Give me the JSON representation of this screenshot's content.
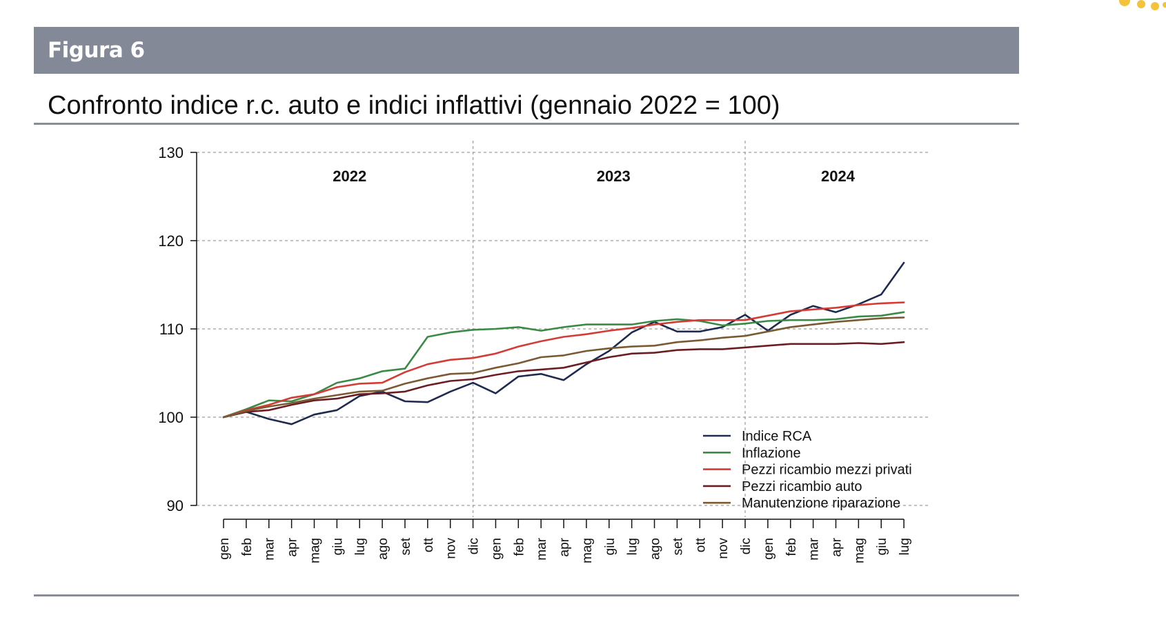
{
  "figure_label": "Figura 6",
  "title": "Confronto indice r.c. auto e indici inflattivi (gennaio 2022 = 100)",
  "colors": {
    "header_bg": "#838996",
    "rule": "#888c94",
    "accent_dots": "#f3c33d"
  },
  "chart_data": {
    "type": "line",
    "title": "Confronto indice r.c. auto e indici inflattivi (gennaio 2022 = 100)",
    "xlabel": "",
    "ylabel": "",
    "ylim": [
      90,
      130
    ],
    "yticks": [
      90,
      100,
      110,
      120,
      130
    ],
    "grid": true,
    "legend_position": "bottom-right",
    "year_labels": [
      "2022",
      "2023",
      "2024"
    ],
    "year_separators_after": [
      "dic",
      "dic"
    ],
    "x": [
      "gen",
      "feb",
      "mar",
      "apr",
      "mag",
      "giu",
      "lug",
      "ago",
      "set",
      "ott",
      "nov",
      "dic",
      "gen",
      "feb",
      "mar",
      "apr",
      "mag",
      "giu",
      "lug",
      "ago",
      "set",
      "ott",
      "nov",
      "dic",
      "gen",
      "feb",
      "mar",
      "apr",
      "mag",
      "giu",
      "lug"
    ],
    "series": [
      {
        "name": "Indice RCA",
        "color": "#1f2a4f",
        "values": [
          100,
          100.6,
          99.8,
          99.2,
          100.3,
          100.8,
          102.4,
          102.9,
          101.8,
          101.7,
          102.9,
          103.9,
          102.7,
          104.6,
          104.9,
          104.2,
          106.0,
          107.5,
          109.6,
          110.8,
          109.7,
          109.7,
          110.2,
          111.6,
          109.8,
          111.6,
          112.6,
          111.9,
          112.8,
          113.9,
          117.5
        ]
      },
      {
        "name": "Inflazione",
        "color": "#3a8a45",
        "values": [
          100,
          100.9,
          101.9,
          101.8,
          102.6,
          103.9,
          104.4,
          105.2,
          105.5,
          109.1,
          109.6,
          109.9,
          110.0,
          110.2,
          109.8,
          110.2,
          110.5,
          110.5,
          110.5,
          110.9,
          111.1,
          110.9,
          110.4,
          110.6,
          110.9,
          111.0,
          111.0,
          111.1,
          111.4,
          111.5,
          111.9
        ]
      },
      {
        "name": "Pezzi ricambio mezzi privati",
        "color": "#d63a35",
        "values": [
          100,
          100.8,
          101.4,
          102.2,
          102.6,
          103.4,
          103.8,
          103.9,
          105.1,
          106.0,
          106.5,
          106.7,
          107.2,
          108.0,
          108.6,
          109.1,
          109.4,
          109.8,
          110.1,
          110.5,
          110.8,
          111.0,
          111.0,
          111.0,
          111.5,
          112.0,
          112.2,
          112.4,
          112.7,
          112.9,
          113.0
        ]
      },
      {
        "name": "Pezzi ricambio auto",
        "color": "#6b1d24",
        "values": [
          100,
          100.6,
          100.8,
          101.4,
          101.9,
          102.1,
          102.6,
          102.7,
          102.9,
          103.6,
          104.1,
          104.3,
          104.8,
          105.2,
          105.4,
          105.6,
          106.2,
          106.8,
          107.2,
          107.3,
          107.6,
          107.7,
          107.7,
          107.9,
          108.1,
          108.3,
          108.3,
          108.3,
          108.4,
          108.3,
          108.5
        ]
      },
      {
        "name": "Manutenzione riparazione",
        "color": "#7a5a33",
        "values": [
          100,
          100.7,
          101.2,
          101.6,
          102.1,
          102.5,
          102.9,
          103.0,
          103.8,
          104.4,
          104.9,
          105.0,
          105.6,
          106.1,
          106.8,
          107.0,
          107.5,
          107.8,
          108.0,
          108.1,
          108.5,
          108.7,
          109.0,
          109.2,
          109.7,
          110.2,
          110.5,
          110.8,
          111.0,
          111.2,
          111.3
        ]
      }
    ]
  }
}
